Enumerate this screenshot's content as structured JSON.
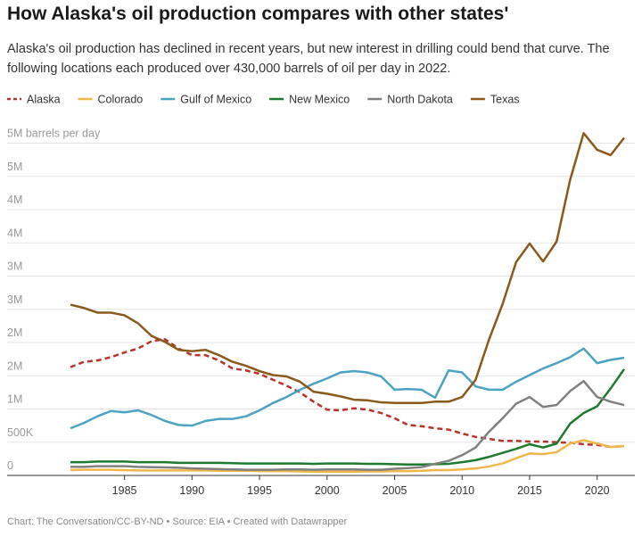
{
  "chart_data": {
    "type": "line",
    "title": "How Alaska's oil production compares with other states'",
    "subtitle": "Alaska's oil production has declined in recent years, but new interest in drilling could bend that curve. The following locations each produced over 430,000 barrels of oil per day in 2022.",
    "source": "Chart: The Conversation/CC-BY-ND • Source: EIA • Created with Datawrapper",
    "x": [
      1981,
      1982,
      1983,
      1984,
      1985,
      1986,
      1987,
      1988,
      1989,
      1990,
      1991,
      1992,
      1993,
      1994,
      1995,
      1996,
      1997,
      1998,
      1999,
      2000,
      2001,
      2002,
      2003,
      2004,
      2005,
      2006,
      2007,
      2008,
      2009,
      2010,
      2011,
      2012,
      2013,
      2014,
      2015,
      2016,
      2017,
      2018,
      2019,
      2020,
      2021,
      2022
    ],
    "xlim": [
      1981,
      2022
    ],
    "xticks": [
      1985,
      1990,
      1995,
      2000,
      2005,
      2010,
      2015,
      2020
    ],
    "ylim": [
      0,
      5200000
    ],
    "yticks": [
      0,
      {
        "value": 500000,
        "label": "500K"
      },
      {
        "value": 1000000,
        "label": "1M"
      },
      {
        "value": 1500000,
        "label": "2M"
      },
      {
        "value": 2000000,
        "label": "2M"
      },
      {
        "value": 2500000,
        "label": "3M"
      },
      {
        "value": 3000000,
        "label": "3M"
      },
      {
        "value": 3500000,
        "label": "4M"
      },
      {
        "value": 4000000,
        "label": "4M"
      },
      {
        "value": 4500000,
        "label": "5M"
      },
      {
        "value": 5000000,
        "label": "5M barrels per day"
      }
    ],
    "grid": true,
    "legend": "top",
    "series": [
      {
        "name": "Alaska",
        "color": "#b8322a",
        "dashed": true,
        "values": [
          1630000,
          1710000,
          1730000,
          1780000,
          1850000,
          1910000,
          2020000,
          2050000,
          1910000,
          1810000,
          1810000,
          1730000,
          1610000,
          1580000,
          1530000,
          1440000,
          1350000,
          1250000,
          1110000,
          990000,
          980000,
          1010000,
          990000,
          940000,
          860000,
          760000,
          740000,
          710000,
          690000,
          630000,
          580000,
          550000,
          520000,
          520000,
          510000,
          510000,
          500000,
          490000,
          470000,
          460000,
          430000,
          440000
        ]
      },
      {
        "name": "Colorado",
        "color": "#f0b64a",
        "values": [
          80000,
          85000,
          85000,
          85000,
          80000,
          75000,
          75000,
          75000,
          75000,
          75000,
          75000,
          70000,
          70000,
          70000,
          65000,
          65000,
          65000,
          60000,
          55000,
          55000,
          55000,
          55000,
          60000,
          60000,
          65000,
          65000,
          70000,
          80000,
          80000,
          90000,
          105000,
          135000,
          180000,
          260000,
          330000,
          320000,
          350000,
          480000,
          530000,
          480000,
          430000,
          440000
        ]
      },
      {
        "name": "Gulf of Mexico",
        "color": "#4ba3c3",
        "values": [
          710000,
          790000,
          890000,
          970000,
          950000,
          980000,
          910000,
          820000,
          760000,
          750000,
          820000,
          850000,
          850000,
          890000,
          980000,
          1090000,
          1180000,
          1290000,
          1380000,
          1460000,
          1550000,
          1570000,
          1550000,
          1490000,
          1290000,
          1300000,
          1290000,
          1170000,
          1580000,
          1550000,
          1340000,
          1290000,
          1290000,
          1410000,
          1510000,
          1610000,
          1690000,
          1780000,
          1910000,
          1690000,
          1740000,
          1770000
        ]
      },
      {
        "name": "New Mexico",
        "color": "#1e7a2e",
        "values": [
          200000,
          200000,
          210000,
          210000,
          210000,
          200000,
          200000,
          200000,
          190000,
          190000,
          190000,
          190000,
          185000,
          180000,
          180000,
          180000,
          180000,
          180000,
          175000,
          180000,
          180000,
          180000,
          175000,
          175000,
          170000,
          165000,
          165000,
          170000,
          175000,
          200000,
          230000,
          280000,
          340000,
          400000,
          470000,
          420000,
          480000,
          780000,
          940000,
          1040000,
          1310000,
          1600000
        ]
      },
      {
        "name": "North Dakota",
        "color": "#808080",
        "values": [
          130000,
          130000,
          140000,
          140000,
          140000,
          130000,
          125000,
          120000,
          115000,
          105000,
          100000,
          95000,
          90000,
          85000,
          85000,
          85000,
          90000,
          90000,
          85000,
          90000,
          90000,
          90000,
          85000,
          85000,
          100000,
          110000,
          125000,
          175000,
          220000,
          305000,
          420000,
          660000,
          860000,
          1080000,
          1180000,
          1030000,
          1060000,
          1270000,
          1420000,
          1180000,
          1110000,
          1060000
        ]
      },
      {
        "name": "Texas",
        "color": "#8b5a1a",
        "values": [
          2570000,
          2520000,
          2450000,
          2450000,
          2410000,
          2290000,
          2100000,
          2010000,
          1890000,
          1870000,
          1890000,
          1810000,
          1710000,
          1650000,
          1570000,
          1510000,
          1490000,
          1410000,
          1260000,
          1230000,
          1190000,
          1140000,
          1130000,
          1100000,
          1090000,
          1090000,
          1090000,
          1110000,
          1110000,
          1180000,
          1440000,
          2050000,
          2580000,
          3210000,
          3490000,
          3220000,
          3520000,
          4450000,
          5150000,
          4900000,
          4820000,
          5080000
        ]
      }
    ]
  }
}
